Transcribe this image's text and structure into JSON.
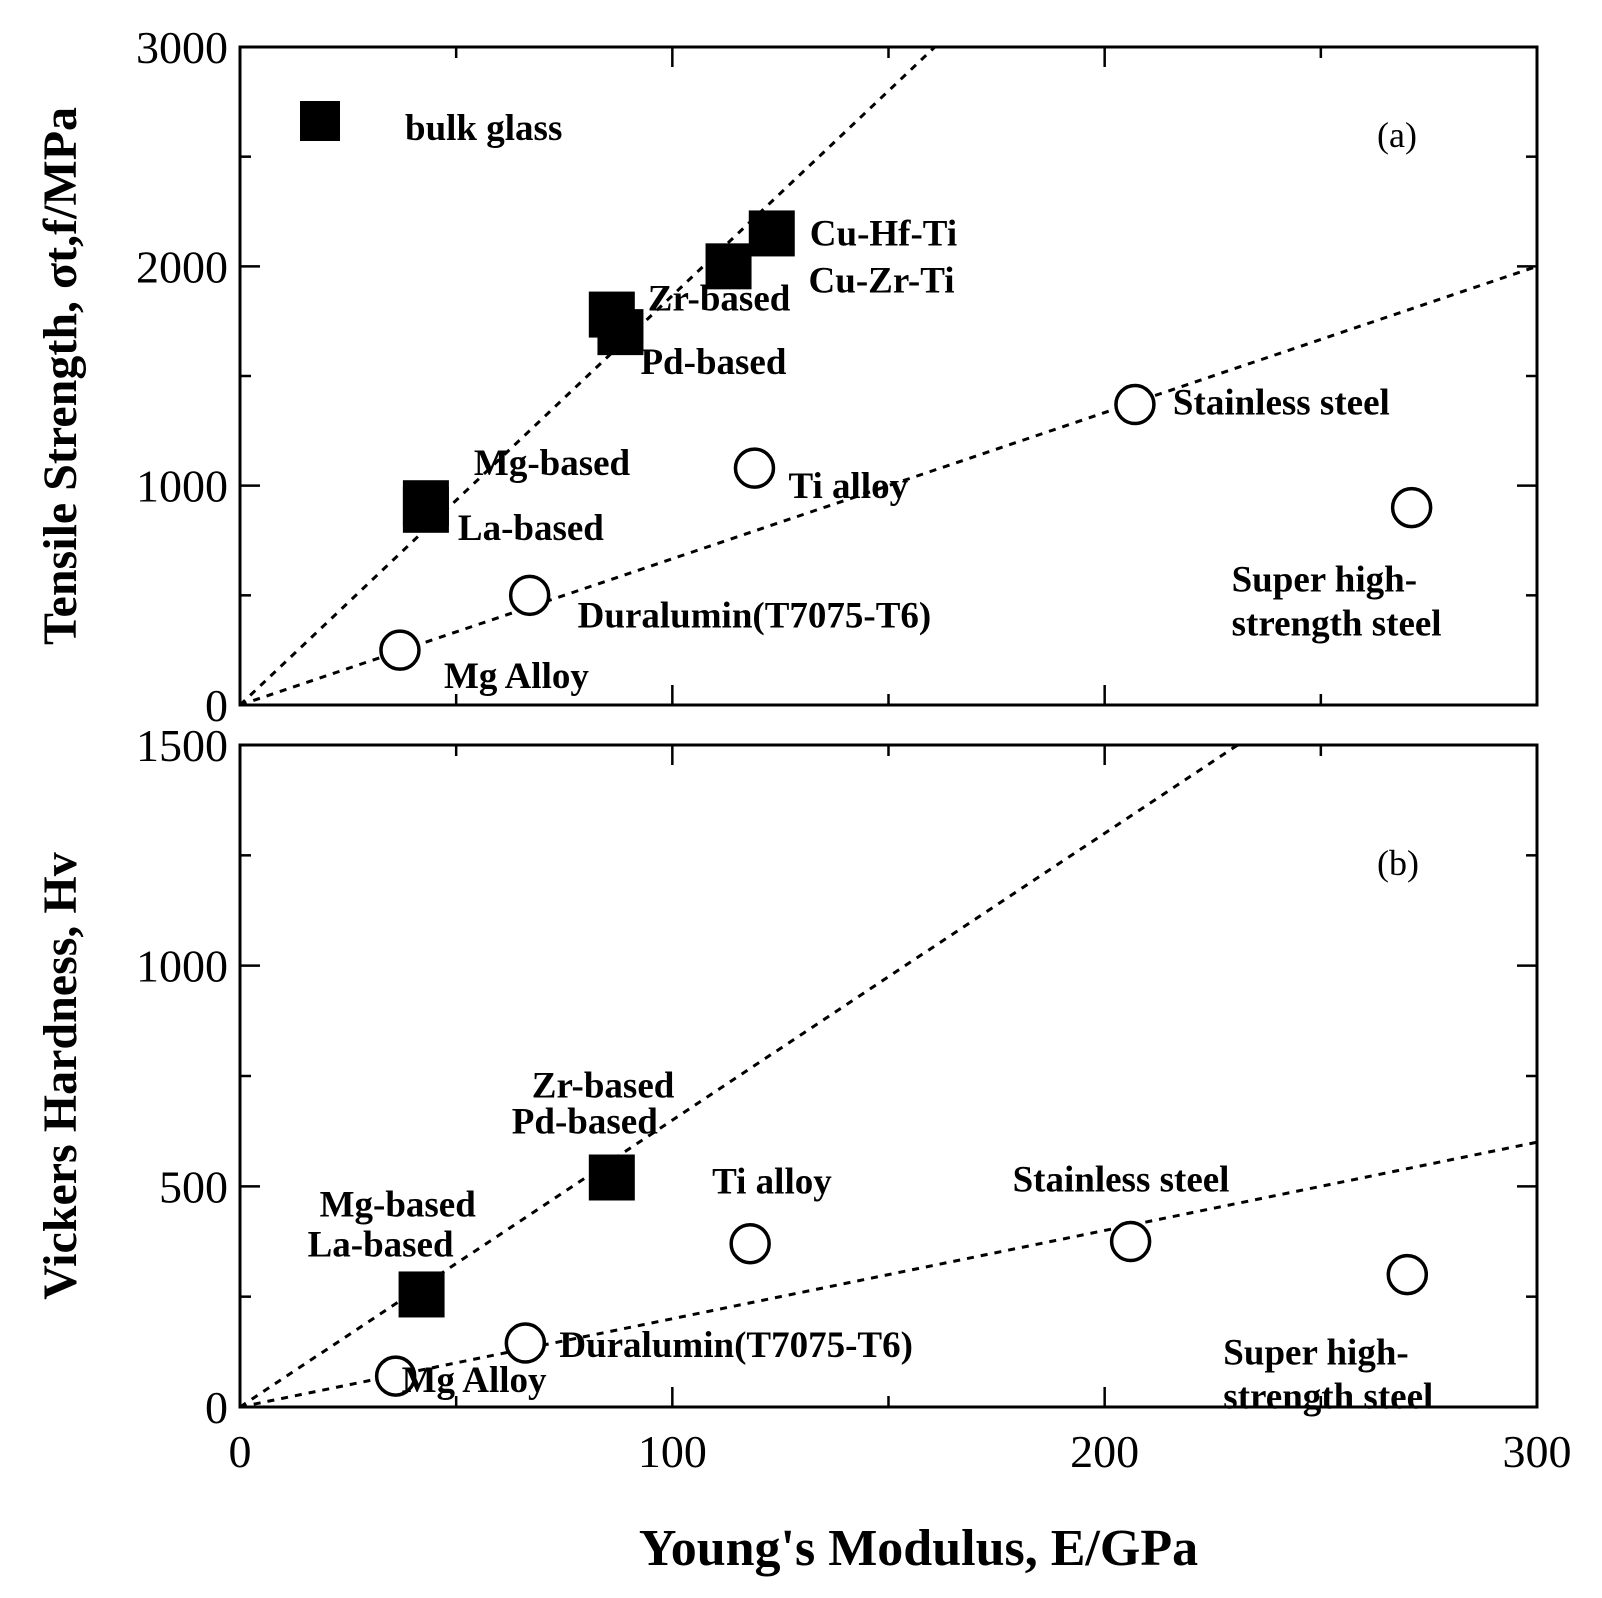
{
  "chart_data": [
    {
      "panel": "(a)",
      "type": "scatter",
      "xlabel": "Young's Modulus, E/GPa",
      "ylabel": "Tensile Strength, σ_{t,f}/MPa",
      "xlim": [
        0,
        300
      ],
      "ylim": [
        0,
        3000
      ],
      "xticks": [
        "0",
        "100",
        "200",
        "300"
      ],
      "yticks": [
        "0",
        "1000",
        "2000",
        "3000"
      ],
      "legend": {
        "marker": "filled-square",
        "label": "bulk glass",
        "position": "top-left"
      },
      "series": [
        {
          "name": "bulk glass",
          "marker": "filled-square",
          "points": [
            {
              "label": "Cu-Hf-Ti",
              "x": 123,
              "y": 2150
            },
            {
              "label": "Cu-Zr-Ti",
              "x": 113,
              "y": 2000
            },
            {
              "label": "Zr-based",
              "x": 86,
              "y": 1780
            },
            {
              "label": "Pd-based",
              "x": 88,
              "y": 1700
            },
            {
              "label": "Mg-based",
              "x": 43,
              "y": 920
            },
            {
              "label": "La-based",
              "x": 43,
              "y": 890
            }
          ]
        },
        {
          "marker": "open-circle",
          "points": [
            {
              "label": "Stainless steel",
              "x": 207,
              "y": 1370
            },
            {
              "label": "Ti alloy",
              "x": 119,
              "y": 1080
            },
            {
              "label": "Super high-strength steel",
              "x": 271,
              "y": 900
            },
            {
              "label": "Duralumin(T7075-T6)",
              "x": 67,
              "y": 500
            },
            {
              "label": "Mg Alloy",
              "x": 37,
              "y": 250
            }
          ]
        }
      ],
      "fit_lines": [
        {
          "x": [
            0,
            300
          ],
          "y": [
            0,
            5600
          ]
        },
        {
          "x": [
            0,
            300
          ],
          "y": [
            0,
            2000
          ]
        }
      ]
    },
    {
      "panel": "(b)",
      "type": "scatter",
      "xlabel": "Young's Modulus, E/GPa",
      "ylabel": "Vickers Hardness, H_v",
      "xlim": [
        0,
        300
      ],
      "ylim": [
        0,
        1500
      ],
      "xticks": [
        "0",
        "100",
        "200",
        "300"
      ],
      "yticks": [
        "0",
        "500",
        "1000",
        "1500"
      ],
      "series": [
        {
          "marker": "filled-square",
          "points": [
            {
              "label": "Zr-based / Pd-based",
              "x": 86,
              "y": 520
            },
            {
              "label": "Mg-based / La-based",
              "x": 42,
              "y": 255
            }
          ]
        },
        {
          "marker": "open-circle",
          "points": [
            {
              "label": "Stainless steel",
              "x": 206,
              "y": 375
            },
            {
              "label": "Ti alloy",
              "x": 118,
              "y": 370
            },
            {
              "label": "Super high-strength steel",
              "x": 270,
              "y": 300
            },
            {
              "label": "Duralumin(T7075-T6)",
              "x": 66,
              "y": 145
            },
            {
              "label": "Mg Alloy",
              "x": 36,
              "y": 70
            }
          ]
        }
      ],
      "fit_lines": [
        {
          "x": [
            0,
            300
          ],
          "y": [
            0,
            1950
          ]
        },
        {
          "x": [
            0,
            300
          ],
          "y": [
            0,
            600
          ]
        }
      ]
    }
  ]
}
